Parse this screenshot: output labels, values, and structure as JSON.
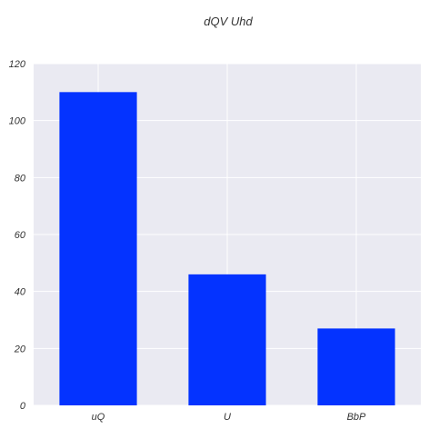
{
  "chart_data": {
    "type": "bar",
    "title": "dQV Uhd",
    "xlabel": "",
    "ylabel": "",
    "categories": [
      "uQ",
      "U",
      "BbP"
    ],
    "values": [
      110,
      46,
      27
    ],
    "ylim": [
      0,
      120
    ],
    "yticks": [
      0,
      20,
      40,
      60,
      80,
      100,
      120
    ],
    "grid": true,
    "bar_color": "#0433ff",
    "plot_background": "#eaeaf2",
    "grid_color": "#ffffff"
  }
}
